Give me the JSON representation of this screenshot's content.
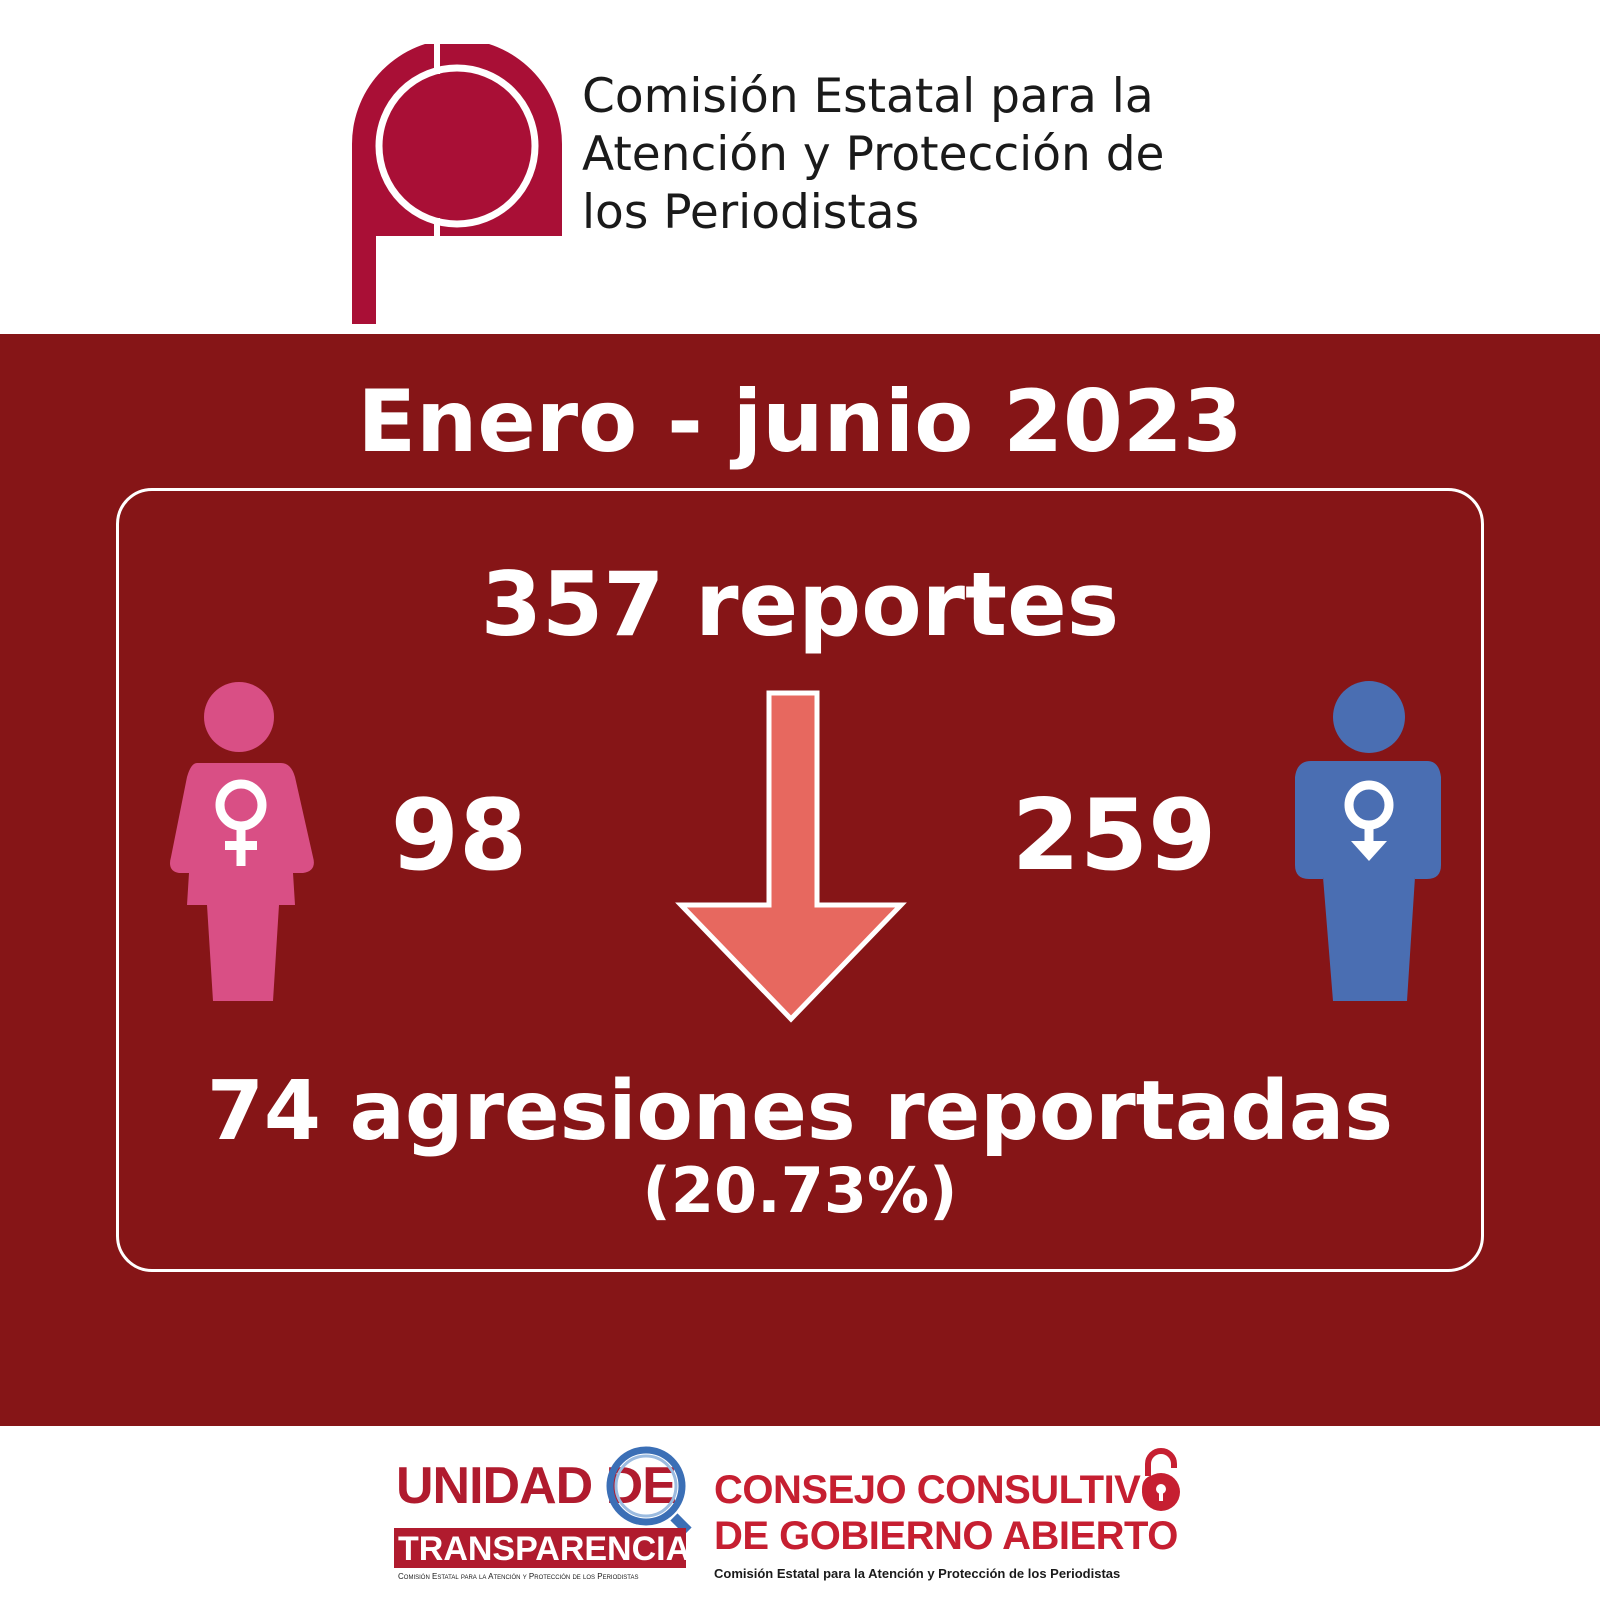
{
  "header": {
    "org_name_lines": [
      "Comisión Estatal para la",
      "Atención y Protección de",
      "los Periodistas"
    ],
    "logo_icon": "ceapp-logo-icon"
  },
  "main": {
    "period": "Enero - junio 2023",
    "total_reports": "357 reportes",
    "female_count": "98",
    "male_count": "259",
    "aggressions": "74 agresiones reportadas",
    "aggressions_pct": "(20.73%)",
    "female_icon": "female-person-icon",
    "male_icon": "male-person-icon",
    "arrow_icon": "down-arrow-icon"
  },
  "footer": {
    "transparency": {
      "line1": "UNIDAD DE",
      "line2": "TRANSPARENCIA",
      "sub": "Comisión Estatal para la Atención y Protección de los Periodistas"
    },
    "council": {
      "line1": "CONSEJO CONSULTIVO",
      "line2": "DE GOBIERNO ABIERTO",
      "sub": "Comisión Estatal para la Atención y Protección de los Periodistas"
    }
  },
  "colors": {
    "brand_dark_red": "#861517",
    "logo_crimson": "#a90f36",
    "female_pink": "#d94f85",
    "male_blue": "#4a6eb2",
    "arrow_salmon": "#e7685f",
    "footer_red": "#c61f31"
  }
}
